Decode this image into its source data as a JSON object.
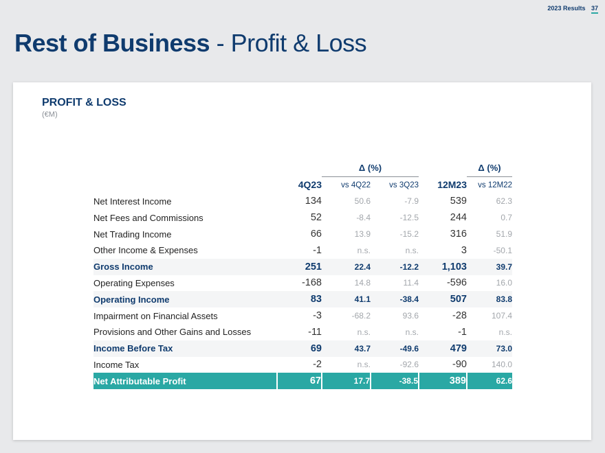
{
  "header": {
    "results_label": "2023 Results",
    "page_number": "37"
  },
  "title": {
    "bold": "Rest of Business",
    "light": " - Profit & Loss"
  },
  "section": {
    "title": "PROFIT & LOSS",
    "subtitle": "(€M)"
  },
  "table": {
    "delta_label": "Δ (%)",
    "columns": [
      "4Q23",
      "vs 4Q22",
      "vs 3Q23",
      "12M23",
      "vs 12M22"
    ],
    "rows": [
      {
        "label": "Net Interest Income",
        "q": "134",
        "v1": "50.6",
        "v2": "-7.9",
        "y": "539",
        "v3": "62.3",
        "style": "normal"
      },
      {
        "label": "Net Fees and Commissions",
        "q": "52",
        "v1": "-8.4",
        "v2": "-12.5",
        "y": "244",
        "v3": "0.7",
        "style": "normal"
      },
      {
        "label": "Net Trading Income",
        "q": "66",
        "v1": "13.9",
        "v2": "-15.2",
        "y": "316",
        "v3": "51.9",
        "style": "normal"
      },
      {
        "label": "Other Income & Expenses",
        "q": "-1",
        "v1": "n.s.",
        "v2": "n.s.",
        "y": "3",
        "v3": "-50.1",
        "style": "normal"
      },
      {
        "label": "Gross Income",
        "q": "251",
        "v1": "22.4",
        "v2": "-12.2",
        "y": "1,103",
        "v3": "39.7",
        "style": "highlight"
      },
      {
        "label": "Operating Expenses",
        "q": "-168",
        "v1": "14.8",
        "v2": "11.4",
        "y": "-596",
        "v3": "16.0",
        "style": "normal"
      },
      {
        "label": "Operating Income",
        "q": "83",
        "v1": "41.1",
        "v2": "-38.4",
        "y": "507",
        "v3": "83.8",
        "style": "highlight"
      },
      {
        "label": "Impairment on Financial Assets",
        "q": "-3",
        "v1": "-68.2",
        "v2": "93.6",
        "y": "-28",
        "v3": "107.4",
        "style": "normal"
      },
      {
        "label": "Provisions and Other Gains and Losses",
        "q": "-11",
        "v1": "n.s.",
        "v2": "n.s.",
        "y": "-1",
        "v3": "n.s.",
        "style": "normal"
      },
      {
        "label": "Income Before Tax",
        "q": "69",
        "v1": "43.7",
        "v2": "-49.6",
        "y": "479",
        "v3": "73.0",
        "style": "highlight"
      },
      {
        "label": "Income Tax",
        "q": "-2",
        "v1": "n.s.",
        "v2": "-92.6",
        "y": "-90",
        "v3": "140.0",
        "style": "normal"
      },
      {
        "label": "Net Attributable Profit",
        "q": "67",
        "v1": "17.7",
        "v2": "-38.5",
        "y": "389",
        "v3": "62.6",
        "style": "total"
      }
    ]
  },
  "colors": {
    "brand_navy": "#0f3b6e",
    "accent_teal": "#2aa8a4",
    "muted_gray": "#a2a6ab"
  }
}
